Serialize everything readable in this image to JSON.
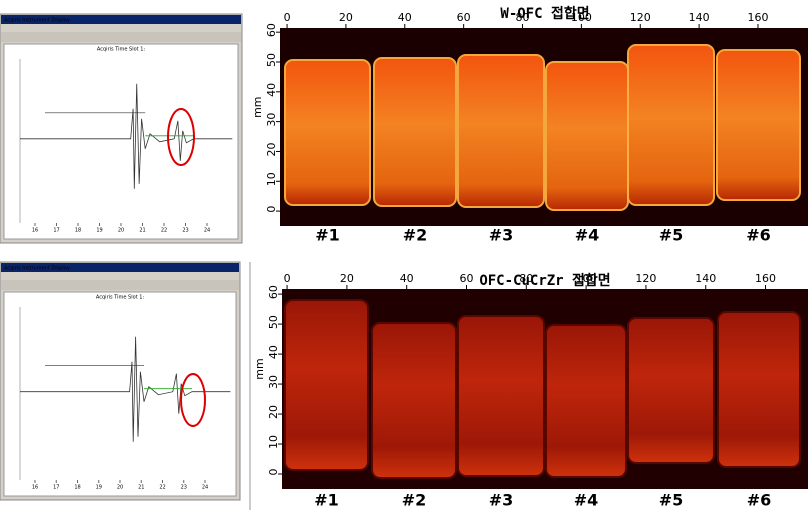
{
  "panels": [
    {
      "title": "W-OFC 접합면",
      "y_label": "mm",
      "xticks": [
        0,
        20,
        40,
        60,
        80,
        100,
        120,
        140,
        160
      ],
      "yticks": [
        0,
        10,
        20,
        30,
        40,
        50,
        60
      ],
      "xlim": [
        -2.4,
        177
      ],
      "ylim": [
        -5,
        61.4
      ],
      "samples": [
        "#1",
        "#2",
        "#3",
        "#4",
        "#5",
        "#6"
      ],
      "scope": {
        "window_title": "Acqiris Instrument Display",
        "plot_title": "Acqiris Time Slot 1:",
        "xticks": [
          16,
          17,
          18,
          19,
          20,
          21,
          22,
          23,
          24
        ]
      }
    },
    {
      "title": "OFC-CuCrZr 접합면",
      "y_label": "mm",
      "xticks": [
        0,
        20,
        40,
        60,
        80,
        100,
        120,
        140,
        160
      ],
      "yticks": [
        0,
        10,
        20,
        30,
        40,
        50,
        60
      ],
      "xlim": [
        -1.7,
        174.2
      ],
      "ylim": [
        -5,
        61.7
      ],
      "samples": [
        "#1",
        "#2",
        "#3",
        "#4",
        "#5",
        "#6"
      ],
      "scope": {
        "window_title": "Acqiris Instrument Display",
        "plot_title": "Acqiris Time Slot 1:",
        "xticks": [
          16,
          17,
          18,
          19,
          20,
          21,
          22,
          23,
          24
        ]
      }
    }
  ]
}
